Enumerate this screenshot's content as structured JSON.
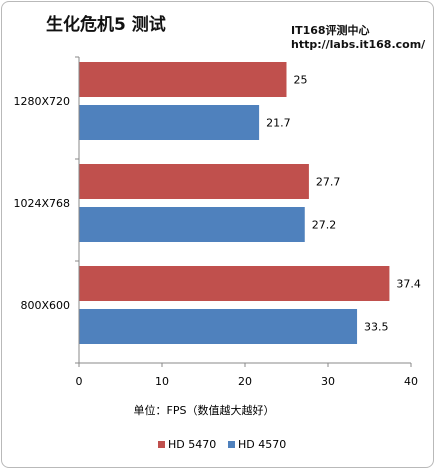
{
  "header": {
    "title": "生化危机5 测试",
    "source_line1": "IT168评测中心",
    "source_line2": "http://labs.it168.com/"
  },
  "chart_data": {
    "type": "bar",
    "orientation": "horizontal",
    "title": "生化危机5 测试",
    "categories": [
      "1280X720",
      "1024X768",
      "800X600"
    ],
    "series": [
      {
        "name": "HD 5470",
        "color": "#c0504d",
        "values": [
          25,
          27.7,
          37.4
        ]
      },
      {
        "name": "HD 4570",
        "color": "#4f81bd",
        "values": [
          21.7,
          27.2,
          33.5
        ]
      }
    ],
    "value_labels": [
      [
        "25",
        "27.7",
        "37.4"
      ],
      [
        "21.7",
        "27.2",
        "33.5"
      ]
    ],
    "xlabel": "单位：FPS（数值越大越好）",
    "ylabel": "",
    "xlim": [
      0,
      40
    ],
    "xticks": [
      0,
      10,
      20,
      30,
      40
    ],
    "grid": false,
    "legend_position": "bottom"
  }
}
